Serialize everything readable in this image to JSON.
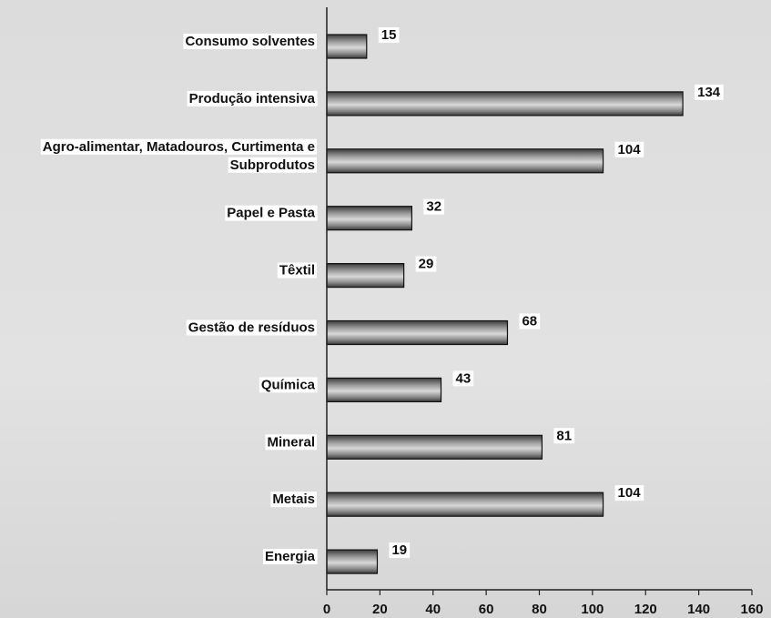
{
  "chart_data": {
    "type": "bar",
    "orientation": "horizontal",
    "title": "",
    "xlabel": "",
    "ylabel": "",
    "categories": [
      "Consumo solventes",
      "Produção intensiva",
      "Agro-alimentar, Matadouros, Curtimenta e Subprodutos",
      "Papel e Pasta",
      "Têxtil",
      "Gestão de resíduos",
      "Química",
      "Mineral",
      "Metais",
      "Energia"
    ],
    "category_label_lines": [
      [
        "Consumo solventes"
      ],
      [
        "Produção intensiva"
      ],
      [
        "Agro-alimentar, Matadouros, Curtimenta e",
        "Subprodutos"
      ],
      [
        "Papel e Pasta"
      ],
      [
        "Têxtil"
      ],
      [
        "Gestão de resíduos"
      ],
      [
        "Química"
      ],
      [
        "Mineral"
      ],
      [
        "Metais"
      ],
      [
        "Energia"
      ]
    ],
    "values": [
      15,
      134,
      104,
      32,
      29,
      68,
      43,
      81,
      104,
      19
    ],
    "xlim": [
      0,
      160
    ],
    "x_ticks": [
      0,
      20,
      40,
      60,
      80,
      100,
      120,
      140,
      160
    ],
    "grid": false,
    "legend": "none",
    "data_labels": true
  },
  "colors": {
    "background": "#dedede",
    "bar_dark": "#3a3a3a",
    "bar_mid": "#9a9a9a",
    "bar_light": "#d8d8d8",
    "bar_stroke": "#111111",
    "axis": "#222222",
    "label_box": "#ffffff"
  }
}
